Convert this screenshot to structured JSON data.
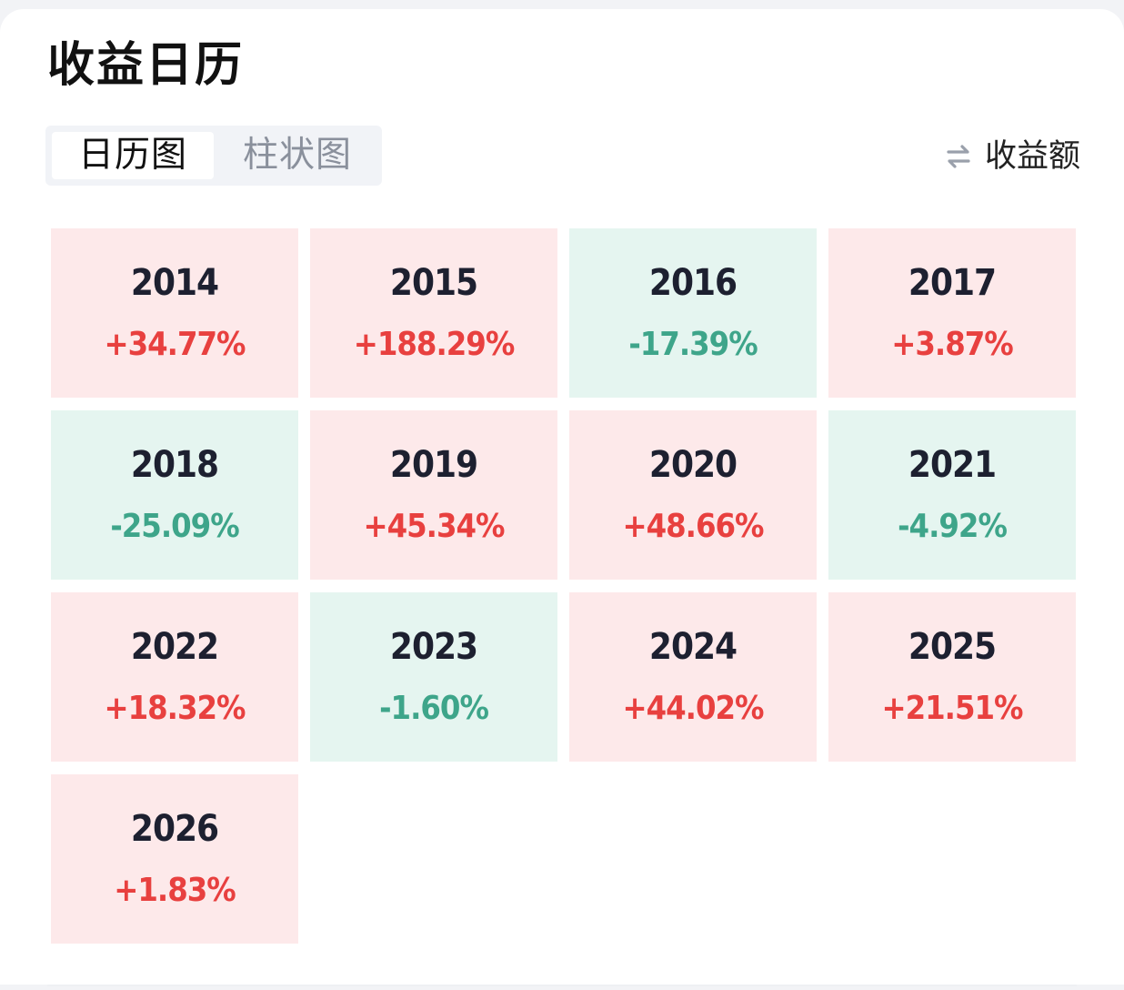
{
  "header": {
    "title": "收益日历"
  },
  "view_tabs": [
    {
      "label": "日历图",
      "active": true
    },
    {
      "label": "柱状图",
      "active": false
    }
  ],
  "toggle": {
    "label": "收益额",
    "icon": "swap-arrows-icon"
  },
  "colors": {
    "positive_bg": "#fde9ea",
    "positive_text": "#e8403f",
    "negative_bg": "#e5f5f0",
    "negative_text": "#3ea58a"
  },
  "calendar": [
    {
      "year": "2014",
      "return": "+34.77%",
      "trend": "pos"
    },
    {
      "year": "2015",
      "return": "+188.29%",
      "trend": "pos"
    },
    {
      "year": "2016",
      "return": "-17.39%",
      "trend": "neg"
    },
    {
      "year": "2017",
      "return": "+3.87%",
      "trend": "pos"
    },
    {
      "year": "2018",
      "return": "-25.09%",
      "trend": "neg"
    },
    {
      "year": "2019",
      "return": "+45.34%",
      "trend": "pos"
    },
    {
      "year": "2020",
      "return": "+48.66%",
      "trend": "pos"
    },
    {
      "year": "2021",
      "return": "-4.92%",
      "trend": "neg"
    },
    {
      "year": "2022",
      "return": "+18.32%",
      "trend": "pos"
    },
    {
      "year": "2023",
      "return": "-1.60%",
      "trend": "neg"
    },
    {
      "year": "2024",
      "return": "+44.02%",
      "trend": "pos"
    },
    {
      "year": "2025",
      "return": "+21.51%",
      "trend": "pos"
    },
    {
      "year": "2026",
      "return": "+1.83%",
      "trend": "pos"
    }
  ]
}
